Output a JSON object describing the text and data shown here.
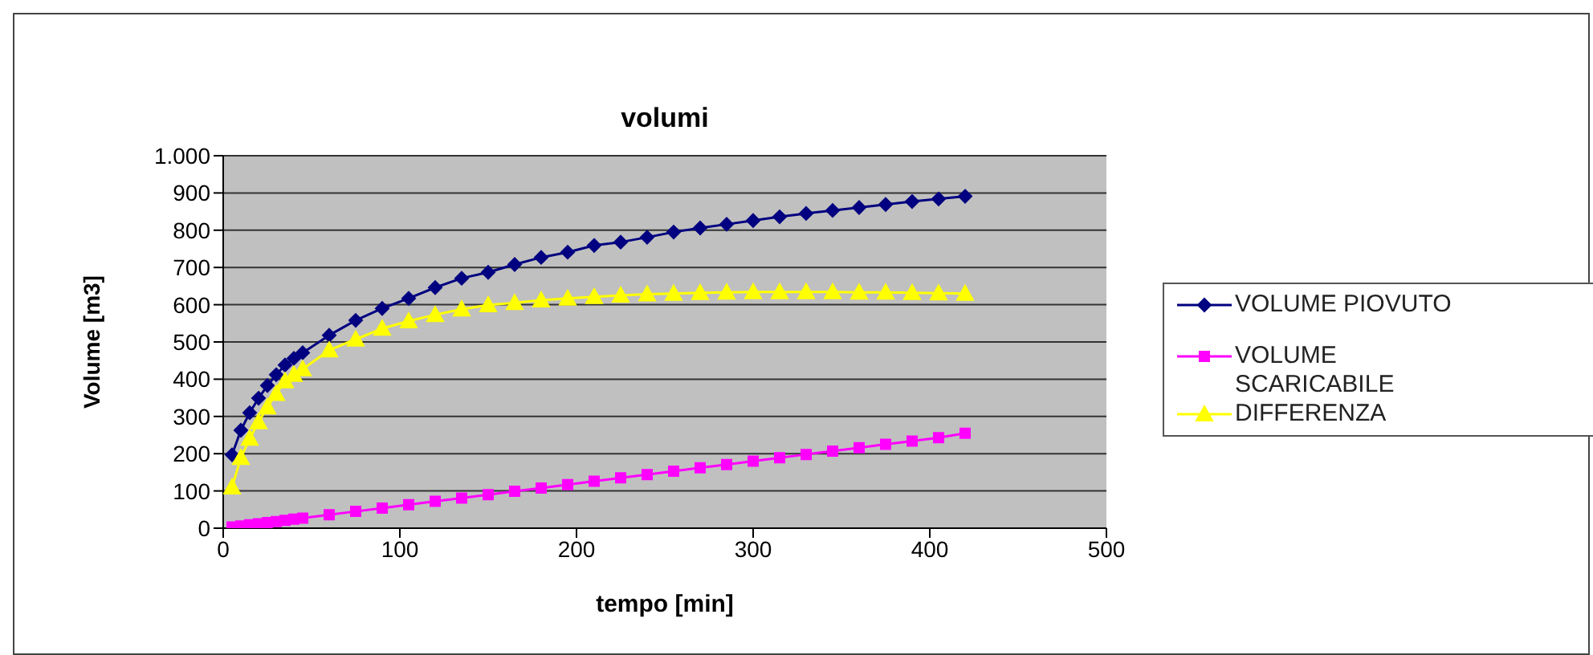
{
  "chart_data": {
    "type": "line",
    "title": "volumi",
    "xlabel": "tempo [min]",
    "ylabel": "Volume [m3]",
    "x": [
      5,
      10,
      15,
      20,
      25,
      30,
      35,
      40,
      45,
      60,
      75,
      90,
      105,
      120,
      135,
      150,
      165,
      180,
      195,
      210,
      225,
      240,
      255,
      270,
      285,
      300,
      315,
      330,
      345,
      360,
      375,
      390,
      405,
      420
    ],
    "series": [
      {
        "name": "VOLUME PIOVUTO",
        "color": "#000080",
        "marker": "diamond",
        "values": [
          197,
          263,
          310,
          349,
          383,
          412,
          438,
          456,
          471,
          518,
          558,
          590,
          617,
          646,
          671,
          687,
          708,
          727,
          741,
          759,
          768,
          781,
          795,
          806,
          816,
          826,
          836,
          845,
          853,
          861,
          869,
          877,
          884,
          891
        ]
      },
      {
        "name": "VOLUME SCARICABILE",
        "color": "#ff00ff",
        "marker": "square",
        "values": [
          3,
          6,
          9,
          12,
          15,
          18,
          21,
          24,
          27,
          36,
          45,
          54,
          63,
          72,
          81,
          90,
          99,
          108,
          117,
          126,
          135,
          144,
          153,
          162,
          171,
          180,
          189,
          198,
          207,
          216,
          225,
          234,
          243,
          255
        ]
      },
      {
        "name": "DIFFERENZA",
        "color": "#ffff00",
        "marker": "triangle",
        "values": [
          110,
          189,
          241,
          285,
          325,
          361,
          395,
          412,
          427,
          478,
          507,
          536,
          556,
          573,
          588,
          599,
          605,
          612,
          617,
          621,
          625,
          628,
          630,
          632,
          633,
          634,
          634,
          634,
          634,
          633,
          633,
          632,
          631,
          630
        ]
      }
    ],
    "xlim": [
      0,
      500
    ],
    "xticks": [
      0,
      100,
      200,
      300,
      400,
      500
    ],
    "ylim": [
      0,
      1000
    ],
    "yticks": [
      0,
      100,
      200,
      300,
      400,
      500,
      600,
      700,
      800,
      900,
      {
        "value": 1000,
        "label": "1.000"
      }
    ],
    "grid": "y",
    "legend": "right",
    "line_style": "solid"
  }
}
